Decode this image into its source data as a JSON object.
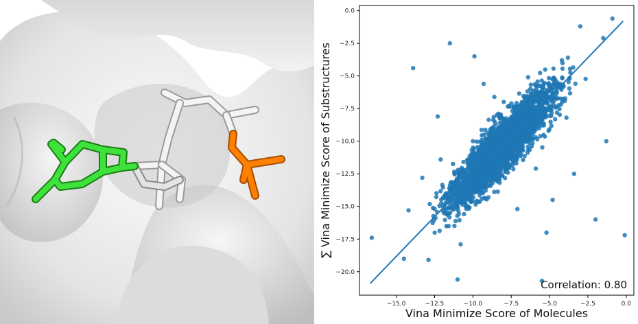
{
  "chart_data": {
    "type": "scatter",
    "title": "",
    "xlabel": "Vina Minimize Score of Molecules",
    "ylabel": "∑ Vina Minimize Score of Substructures",
    "xlim": [
      -17.4,
      0.5
    ],
    "ylim": [
      -21.8,
      0.4
    ],
    "x_ticks": [
      -15.0,
      -12.5,
      -10.0,
      -7.5,
      -5.0,
      -2.5,
      0.0
    ],
    "y_ticks": [
      0.0,
      -2.5,
      -5.0,
      -7.5,
      -10.0,
      -12.5,
      -15.0,
      -17.5,
      -20.0
    ],
    "x_tick_labels": [
      "−15.0",
      "−12.5",
      "−10.0",
      "−7.5",
      "−5.0",
      "−2.5",
      "0.0"
    ],
    "y_tick_labels": [
      "0.0",
      "−2.5",
      "−5.0",
      "−7.5",
      "−10.0",
      "−12.5",
      "−15.0",
      "−17.5",
      "−20.0"
    ],
    "annotation": "Correlation: 0.80",
    "correlation": 0.8,
    "point_color": "#1f77b4",
    "regression_line": {
      "x": [
        -16.7,
        -0.2
      ],
      "y": [
        -20.9,
        -0.8
      ]
    },
    "grid": false,
    "points_note_free": true,
    "points": [
      [
        -16.6,
        -17.4
      ],
      [
        -14.5,
        -19.0
      ],
      [
        -13.9,
        -4.4
      ],
      [
        -12.3,
        -8.1
      ],
      [
        -11.0,
        -20.6
      ],
      [
        -11.5,
        -2.5
      ],
      [
        -9.9,
        -3.5
      ],
      [
        -5.5,
        -20.7
      ],
      [
        -5.2,
        -17.0
      ],
      [
        -3.4,
        -12.5
      ],
      [
        -2.0,
        -16.0
      ],
      [
        -1.3,
        -10.0
      ],
      [
        -0.1,
        -17.2
      ],
      [
        -0.9,
        -0.6
      ],
      [
        -1.5,
        -2.1
      ],
      [
        -3.0,
        -1.2
      ],
      [
        -4.2,
        -3.8
      ],
      [
        -6.4,
        -5.1
      ],
      [
        -8.6,
        -6.6
      ],
      [
        -10.8,
        -17.9
      ],
      [
        -12.9,
        -19.1
      ],
      [
        -14.2,
        -15.3
      ],
      [
        -13.3,
        -12.8
      ],
      [
        -7.1,
        -15.2
      ],
      [
        -5.9,
        -12.1
      ],
      [
        -4.8,
        -14.5
      ],
      [
        -3.9,
        -8.2
      ],
      [
        -12.1,
        -11.4
      ],
      [
        -9.8,
        -13.9
      ],
      [
        -9.3,
        -5.6
      ]
    ]
  }
}
